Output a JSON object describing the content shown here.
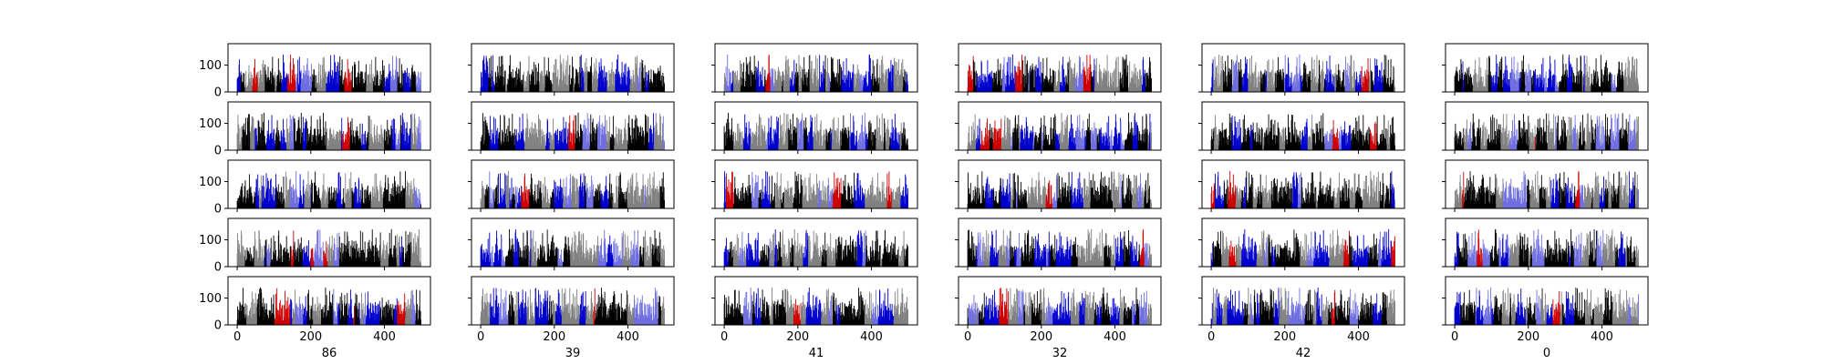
{
  "chart_data": {
    "type": "bar",
    "grid": false,
    "rows": 5,
    "columns": 6,
    "x_range": [
      -25,
      525
    ],
    "y_range": [
      0,
      180
    ],
    "x_ticks": [
      "0",
      "200",
      "400"
    ],
    "x_tick_values": [
      0,
      200,
      400
    ],
    "y_ticks": [
      "0",
      "100"
    ],
    "y_tick_values": [
      0,
      100
    ],
    "column_labels": [
      "86",
      "39",
      "41",
      "32",
      "42",
      "0"
    ],
    "bars_per_panel": 500,
    "bar_value_range": [
      0,
      150
    ],
    "typical_bar_value": 50,
    "bar_colors": [
      "#000000",
      "#808080",
      "#0000cd",
      "#6f6fe0",
      "#cc0000"
    ],
    "color_runs": "bars grouped in contiguous runs of black, gray and blue, with occasional red bars"
  }
}
